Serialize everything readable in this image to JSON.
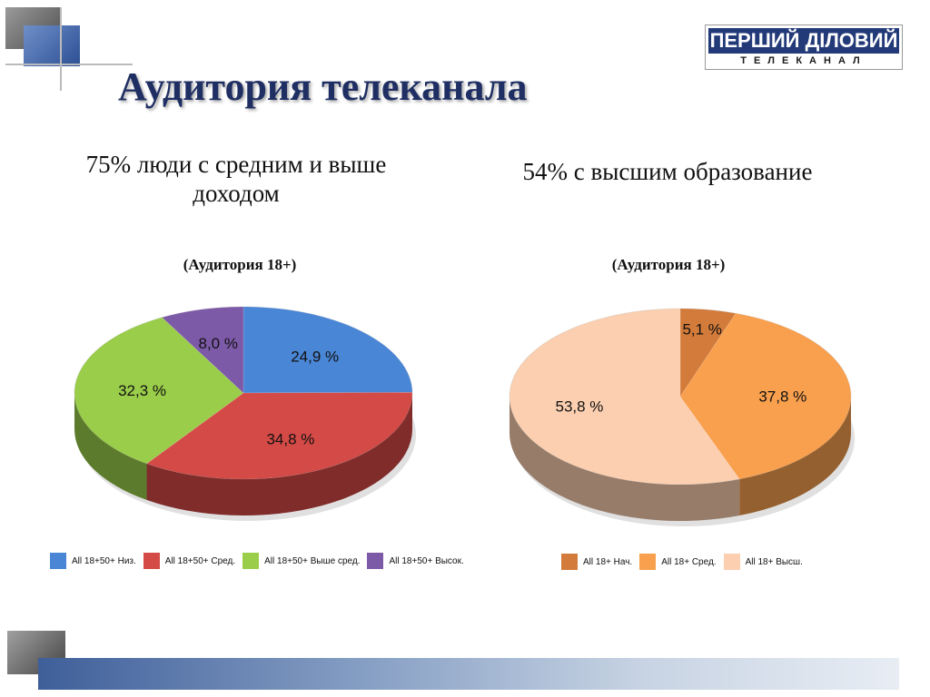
{
  "title": "Аудитория телеканала",
  "logo": {
    "line1": "ПЕРШИЙ ДІЛОВИЙ",
    "line2": "ТЕЛЕКАНАЛ"
  },
  "left_heading": "75% люди с средним и выше доходом",
  "right_heading": "54% с высшим образование",
  "colors": {
    "title": "#1f2f63",
    "logo_bg": "#233a78",
    "bottom_bar": "#3f5f9a"
  },
  "chart_data": [
    {
      "type": "pie",
      "title": "(Аудитория 18+)",
      "series": [
        {
          "name": "All 18+50+ Низ.",
          "value": 24.9,
          "label": "24,9 %",
          "color": "#4a86d6"
        },
        {
          "name": "All 18+50+ Сред.",
          "value": 34.8,
          "label": "34,8 %",
          "color": "#d44a46"
        },
        {
          "name": "All 18+50+ Выше сред.",
          "value": 32.3,
          "label": "32,3 %",
          "color": "#9acd4a"
        },
        {
          "name": "All 18+50+ Высок.",
          "value": 8.0,
          "label": "8,0 %",
          "color": "#7d5aa8"
        }
      ],
      "legend_position": "bottom"
    },
    {
      "type": "pie",
      "title": "(Аудитория 18+)",
      "series": [
        {
          "name": "All 18+ Нач.",
          "value": 5.1,
          "label": "5,1 %",
          "color": "#d37b3a"
        },
        {
          "name": "All 18+ Сред.",
          "value": 37.8,
          "label": "37,8 %",
          "color": "#f9a04e"
        },
        {
          "name": "All 18+ Высш.",
          "value": 53.8,
          "label": "53,8 %",
          "color": "#fbcfb0"
        }
      ],
      "legend_position": "bottom"
    }
  ]
}
